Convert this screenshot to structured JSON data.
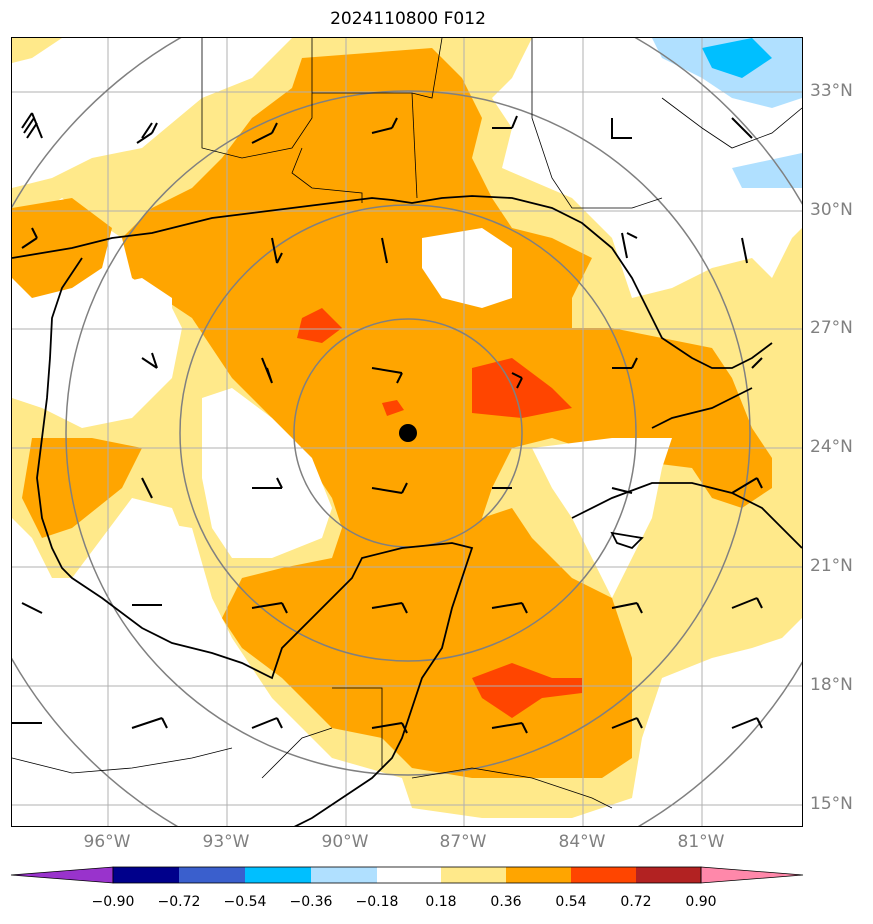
{
  "title": "2024110800 F012",
  "lat_labels": [
    "33°N",
    "30°N",
    "27°N",
    "24°N",
    "21°N",
    "18°N",
    "15°N"
  ],
  "lon_labels": [
    "96°W",
    "93°W",
    "90°W",
    "87°W",
    "84°W",
    "81°W"
  ],
  "colorbar": {
    "ticks": [
      "−0.90",
      "−0.72",
      "−0.54",
      "−0.36",
      "−0.18",
      "0.18",
      "0.36",
      "0.54",
      "0.72",
      "0.90"
    ],
    "colors": [
      "#9933cc",
      "#00008b",
      "#3a5fcd",
      "#00bfff",
      "#b0e0ff",
      "#ffffff",
      "#ffe98a",
      "#ffa500",
      "#ff4500",
      "#b22222",
      "#ff88aa"
    ]
  },
  "map": {
    "center_marker": "storm-center-dot",
    "fill_colors": {
      "light_yellow": "#ffe98a",
      "orange": "#ffa500",
      "red_orange": "#ff4500",
      "light_blue": "#b0e0ff",
      "blue": "#00bfff"
    },
    "range_ring_color": "#808080",
    "coastline_color": "#000000"
  }
}
